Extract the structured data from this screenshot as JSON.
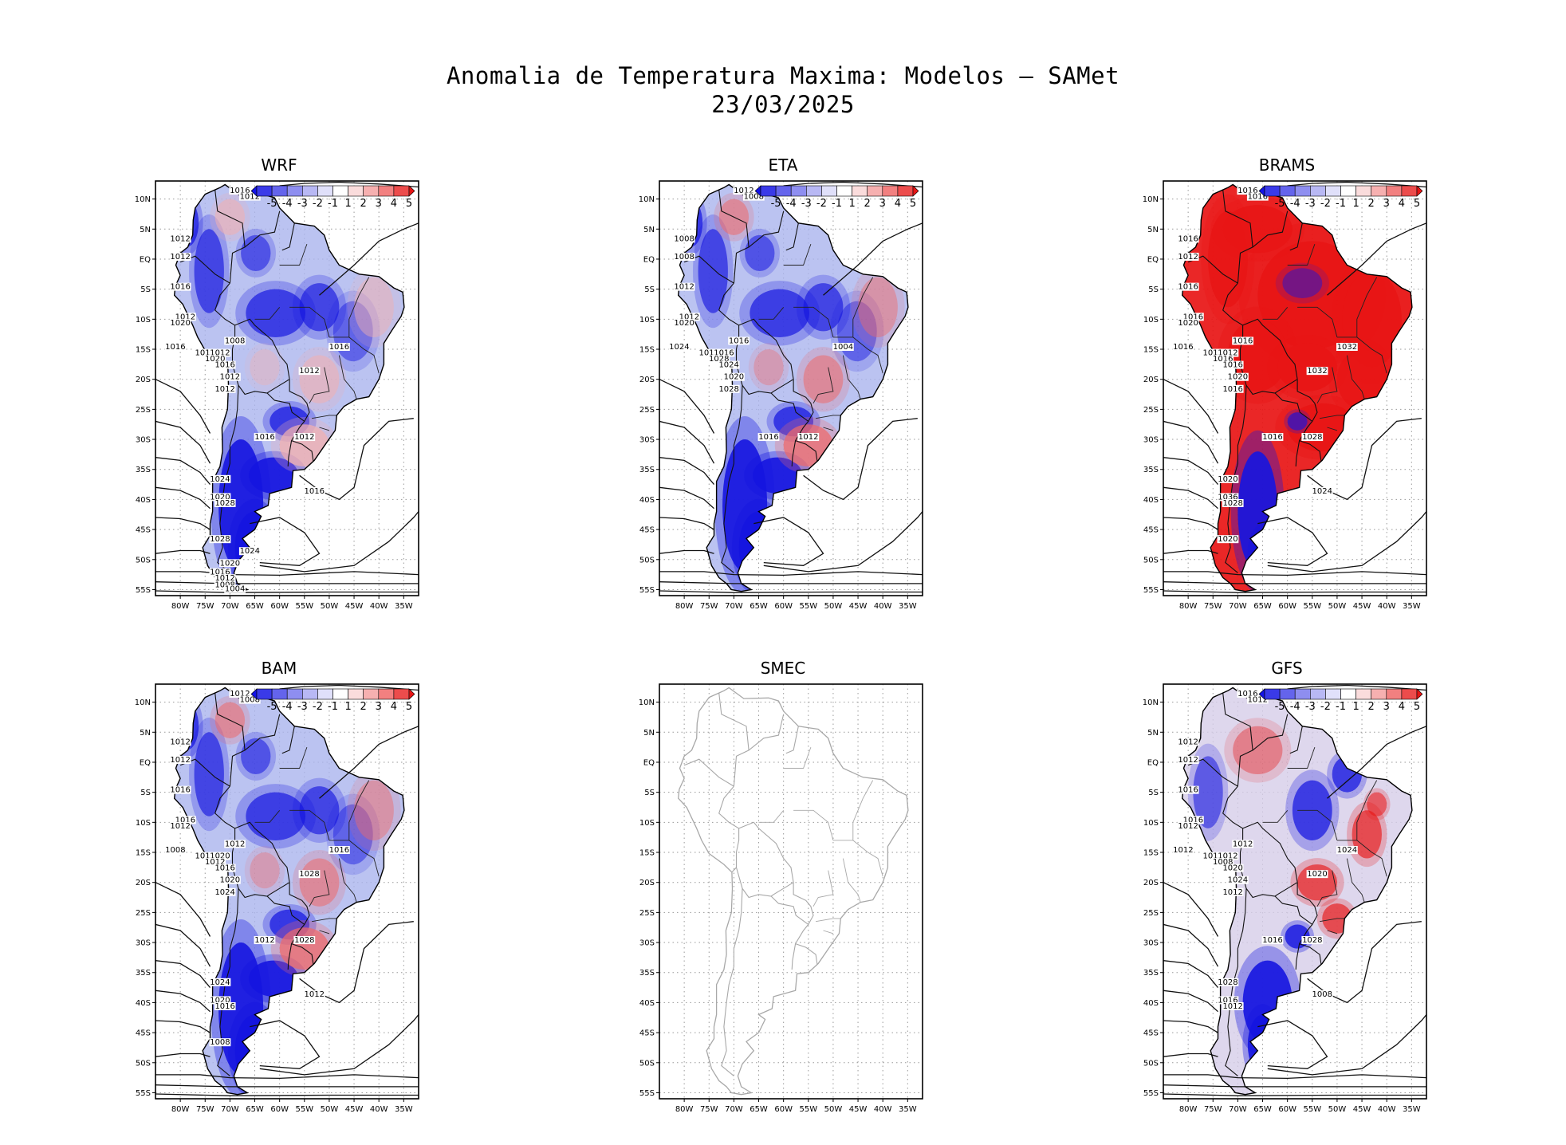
{
  "figure": {
    "title_line1": "Anomalia de Temperatura Maxima: Modelos — SAMet",
    "title_line2": "23/03/2025"
  },
  "axes": {
    "lat_labels": [
      "10N",
      "5N",
      "EQ",
      "5S",
      "10S",
      "15S",
      "20S",
      "25S",
      "30S",
      "35S",
      "40S",
      "45S",
      "50S",
      "55S"
    ],
    "lon_labels": [
      "80W",
      "75W",
      "70W",
      "65W",
      "60W",
      "55W",
      "50W",
      "45W",
      "40W",
      "35W"
    ]
  },
  "colorbar": {
    "labels": [
      "-5",
      "-4",
      "-3",
      "-2",
      "-1",
      "1",
      "2",
      "3",
      "4",
      "5"
    ],
    "colors": [
      "#1414e6",
      "#3a3ae8",
      "#6464ec",
      "#8e8ef0",
      "#b8b8f4",
      "#e0e0fa",
      "#ffffff",
      "#fadcdc",
      "#f6b0b0",
      "#f28080",
      "#ec4c4c",
      "#e61414"
    ]
  },
  "colors": {
    "cold": "#1515e0",
    "warm": "#e81515",
    "light_cold": "#aab4ee",
    "light_warm": "#f2b0b0",
    "border_gray": "#a8a8a8"
  },
  "panels": [
    {
      "id": "wrf",
      "title": "WRF",
      "has_data": true,
      "anomaly": "cold",
      "isobar_labels": [
        "1016",
        "1012",
        "1012",
        "1012",
        "1016",
        "1012",
        "1020",
        "1016",
        "1012",
        "1012",
        "1008",
        "1020",
        "1016",
        "1012",
        "1012",
        "1016",
        "1012",
        "1016",
        "1012",
        "1024",
        "1020",
        "1028",
        "1016",
        "1028",
        "1024",
        "1020",
        "1016",
        "1012",
        "1008",
        "1004"
      ]
    },
    {
      "id": "eta",
      "title": "ETA",
      "has_data": true,
      "anomaly": "cold",
      "isobar_labels": [
        "1012",
        "1008",
        "1008",
        "1008",
        "1012",
        "1012",
        "1020",
        "1024",
        "1012",
        "1016",
        "1016",
        "1028",
        "1024",
        "1020",
        "1028",
        "1016",
        "1012",
        "1004"
      ]
    },
    {
      "id": "brams",
      "title": "BRAMS",
      "has_data": true,
      "anomaly": "warm",
      "isobar_labels": [
        "1016",
        "1016",
        "1016",
        "1012",
        "1016",
        "1016",
        "1020",
        "1016",
        "1016",
        "1012",
        "1016",
        "1016",
        "1016",
        "1020",
        "1016",
        "1016",
        "1028",
        "1032",
        "1032",
        "1020",
        "1036",
        "1028",
        "1024",
        "1020"
      ]
    },
    {
      "id": "bam",
      "title": "BAM",
      "has_data": true,
      "anomaly": "cold",
      "isobar_labels": [
        "1012",
        "1008",
        "1012",
        "1012",
        "1016",
        "1016",
        "1012",
        "1008",
        "1012",
        "1020",
        "1012",
        "1012",
        "1016",
        "1020",
        "1024",
        "1012",
        "1028",
        "1016",
        "1028",
        "1024",
        "1020",
        "1016",
        "1012",
        "1008"
      ]
    },
    {
      "id": "smec",
      "title": "SMEC",
      "has_data": false,
      "anomaly": "none",
      "isobar_labels": []
    },
    {
      "id": "gfs",
      "title": "GFS",
      "has_data": true,
      "anomaly": "mixed",
      "isobar_labels": [
        "1016",
        "1012",
        "1012",
        "1012",
        "1016",
        "1016",
        "1012",
        "1012",
        "1012",
        "1012",
        "1012",
        "1008",
        "1020",
        "1024",
        "1012",
        "1016",
        "1028",
        "1024",
        "1020",
        "1028",
        "1016",
        "1012",
        "1008"
      ]
    }
  ]
}
